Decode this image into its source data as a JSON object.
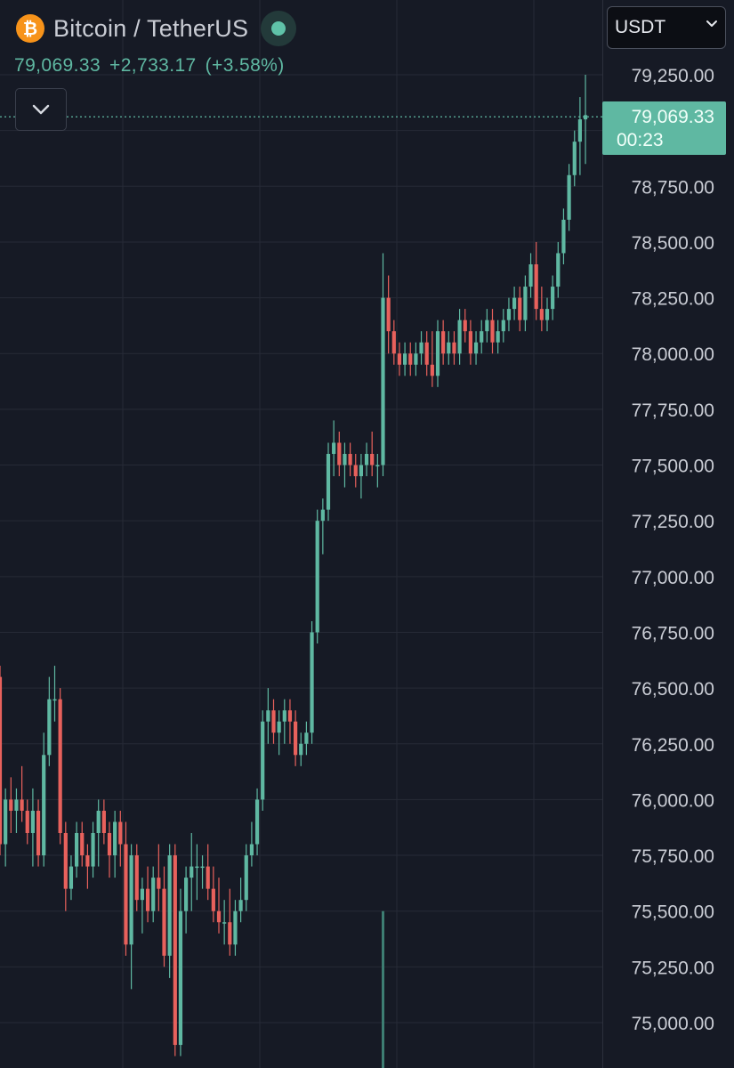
{
  "header": {
    "coin_symbol": "₿",
    "pair_title": "Bitcoin / TetherUS",
    "status_color": "#5fc2a8"
  },
  "quote": {
    "last_price": "79,069.33",
    "change": "+2,733.17",
    "change_percent": "(+3.58%)"
  },
  "currency_select": {
    "value": "USDT"
  },
  "last_price_tag": {
    "price": "79,069.33",
    "countdown": "00:23"
  },
  "colors": {
    "up": "#5fb8a2",
    "down": "#e8615c",
    "background": "#161a25",
    "grid": "#262a36",
    "axis_text": "#c9ccd4"
  },
  "chart_data": {
    "type": "candlestick",
    "y_axis_labels": [
      "79,250.00",
      "78,750.00",
      "78,500.00",
      "78,250.00",
      "78,000.00",
      "77,750.00",
      "77,500.00",
      "77,250.00",
      "77,000.00",
      "76,750.00",
      "76,500.00",
      "76,250.00",
      "76,000.00",
      "75,750.00",
      "75,500.00",
      "75,250.00",
      "75,000.00"
    ],
    "y_axis_values": [
      79250,
      78750,
      78500,
      78250,
      78000,
      77750,
      77500,
      77250,
      77000,
      76750,
      76500,
      76250,
      76000,
      75750,
      75500,
      75250,
      75000
    ],
    "ylim": [
      74850,
      79420
    ],
    "last_price": 79069.33,
    "candles": [
      [
        76550,
        76600,
        75750,
        75800
      ],
      [
        75800,
        76050,
        75700,
        76000
      ],
      [
        76000,
        76100,
        75850,
        75950
      ],
      [
        75950,
        76050,
        75850,
        76000
      ],
      [
        76000,
        76150,
        75900,
        75950
      ],
      [
        75950,
        76000,
        75800,
        75850
      ],
      [
        75850,
        76050,
        75700,
        75950
      ],
      [
        75950,
        76000,
        75700,
        75750
      ],
      [
        75750,
        76300,
        75700,
        76200
      ],
      [
        76200,
        76550,
        76150,
        76450
      ],
      [
        76450,
        76600,
        76350,
        76450
      ],
      [
        76450,
        76500,
        75800,
        75850
      ],
      [
        75850,
        75900,
        75500,
        75600
      ],
      [
        75600,
        75750,
        75550,
        75700
      ],
      [
        75700,
        75900,
        75650,
        75850
      ],
      [
        75850,
        75900,
        75700,
        75750
      ],
      [
        75750,
        75800,
        75600,
        75700
      ],
      [
        75700,
        75900,
        75650,
        75850
      ],
      [
        75850,
        76000,
        75700,
        75950
      ],
      [
        75950,
        76000,
        75800,
        75850
      ],
      [
        75850,
        75900,
        75650,
        75750
      ],
      [
        75750,
        75950,
        75650,
        75900
      ],
      [
        75900,
        75950,
        75700,
        75800
      ],
      [
        75800,
        75900,
        75300,
        75350
      ],
      [
        75350,
        75800,
        75150,
        75750
      ],
      [
        75750,
        75800,
        75500,
        75550
      ],
      [
        75550,
        75650,
        75400,
        75600
      ],
      [
        75600,
        75700,
        75450,
        75500
      ],
      [
        75500,
        75700,
        75450,
        75650
      ],
      [
        75650,
        75800,
        75500,
        75600
      ],
      [
        75600,
        75700,
        75250,
        75300
      ],
      [
        75300,
        75800,
        75200,
        75750
      ],
      [
        75750,
        75800,
        74850,
        74900
      ],
      [
        74900,
        75600,
        74850,
        75500
      ],
      [
        75500,
        75700,
        75400,
        75650
      ],
      [
        75650,
        75850,
        75500,
        75700
      ],
      [
        75700,
        75800,
        75550,
        75700
      ],
      [
        75700,
        75750,
        75600,
        75700
      ],
      [
        75700,
        75800,
        75550,
        75600
      ],
      [
        75600,
        75700,
        75450,
        75500
      ],
      [
        75500,
        75650,
        75400,
        75450
      ],
      [
        75450,
        75550,
        75350,
        75450
      ],
      [
        75450,
        75600,
        75300,
        75350
      ],
      [
        75350,
        75550,
        75300,
        75500
      ],
      [
        75500,
        75650,
        75450,
        75550
      ],
      [
        75550,
        75800,
        75500,
        75750
      ],
      [
        75750,
        75900,
        75700,
        75800
      ],
      [
        75800,
        76050,
        75750,
        76000
      ],
      [
        76000,
        76400,
        75950,
        76350
      ],
      [
        76350,
        76500,
        76250,
        76400
      ],
      [
        76400,
        76450,
        76250,
        76300
      ],
      [
        76300,
        76400,
        76200,
        76350
      ],
      [
        76350,
        76450,
        76250,
        76400
      ],
      [
        76400,
        76450,
        76250,
        76350
      ],
      [
        76350,
        76400,
        76150,
        76200
      ],
      [
        76200,
        76300,
        76150,
        76250
      ],
      [
        76250,
        76350,
        76200,
        76300
      ],
      [
        76300,
        76800,
        76250,
        76750
      ],
      [
        76750,
        77300,
        76700,
        77250
      ],
      [
        77250,
        77350,
        77100,
        77300
      ],
      [
        77300,
        77600,
        77250,
        77550
      ],
      [
        77550,
        77700,
        77450,
        77600
      ],
      [
        77600,
        77650,
        77450,
        77500
      ],
      [
        77500,
        77600,
        77400,
        77550
      ],
      [
        77550,
        77600,
        77450,
        77500
      ],
      [
        77500,
        77550,
        77400,
        77450
      ],
      [
        77450,
        77550,
        77350,
        77500
      ],
      [
        77500,
        77600,
        77450,
        77550
      ],
      [
        77550,
        77650,
        77450,
        77500
      ],
      [
        77500,
        77550,
        77400,
        77500
      ],
      [
        77500,
        78450,
        77450,
        78250
      ],
      [
        78250,
        78350,
        78000,
        78100
      ],
      [
        78100,
        78150,
        77950,
        78000
      ],
      [
        78000,
        78050,
        77900,
        77950
      ],
      [
        77950,
        78050,
        77900,
        78000
      ],
      [
        78000,
        78050,
        77900,
        77950
      ],
      [
        77950,
        78050,
        77900,
        78000
      ],
      [
        78000,
        78100,
        77950,
        78050
      ],
      [
        78050,
        78100,
        77900,
        77950
      ],
      [
        77950,
        78100,
        77850,
        77900
      ],
      [
        77900,
        78150,
        77850,
        78100
      ],
      [
        78100,
        78150,
        77950,
        78000
      ],
      [
        78000,
        78100,
        77950,
        78050
      ],
      [
        78050,
        78100,
        77950,
        78000
      ],
      [
        78000,
        78200,
        77950,
        78150
      ],
      [
        78150,
        78200,
        78050,
        78100
      ],
      [
        78100,
        78150,
        77950,
        78000
      ],
      [
        78000,
        78100,
        77950,
        78050
      ],
      [
        78050,
        78150,
        78000,
        78100
      ],
      [
        78100,
        78200,
        78050,
        78150
      ],
      [
        78150,
        78200,
        78000,
        78050
      ],
      [
        78050,
        78150,
        78000,
        78100
      ],
      [
        78100,
        78200,
        78050,
        78150
      ],
      [
        78150,
        78250,
        78100,
        78200
      ],
      [
        78200,
        78300,
        78150,
        78250
      ],
      [
        78250,
        78300,
        78100,
        78150
      ],
      [
        78150,
        78350,
        78100,
        78300
      ],
      [
        78300,
        78450,
        78250,
        78400
      ],
      [
        78400,
        78500,
        78150,
        78200
      ],
      [
        78200,
        78300,
        78100,
        78150
      ],
      [
        78150,
        78250,
        78100,
        78200
      ],
      [
        78200,
        78350,
        78150,
        78300
      ],
      [
        78300,
        78500,
        78250,
        78450
      ],
      [
        78450,
        78650,
        78400,
        78600
      ],
      [
        78600,
        78850,
        78550,
        78800
      ],
      [
        78800,
        79000,
        78750,
        78950
      ],
      [
        78950,
        79150,
        78800,
        79050
      ],
      [
        79050,
        79250,
        78850,
        79069
      ]
    ],
    "volume": {
      "visible_bar_candle_index": 70,
      "top_value": 75500
    }
  }
}
